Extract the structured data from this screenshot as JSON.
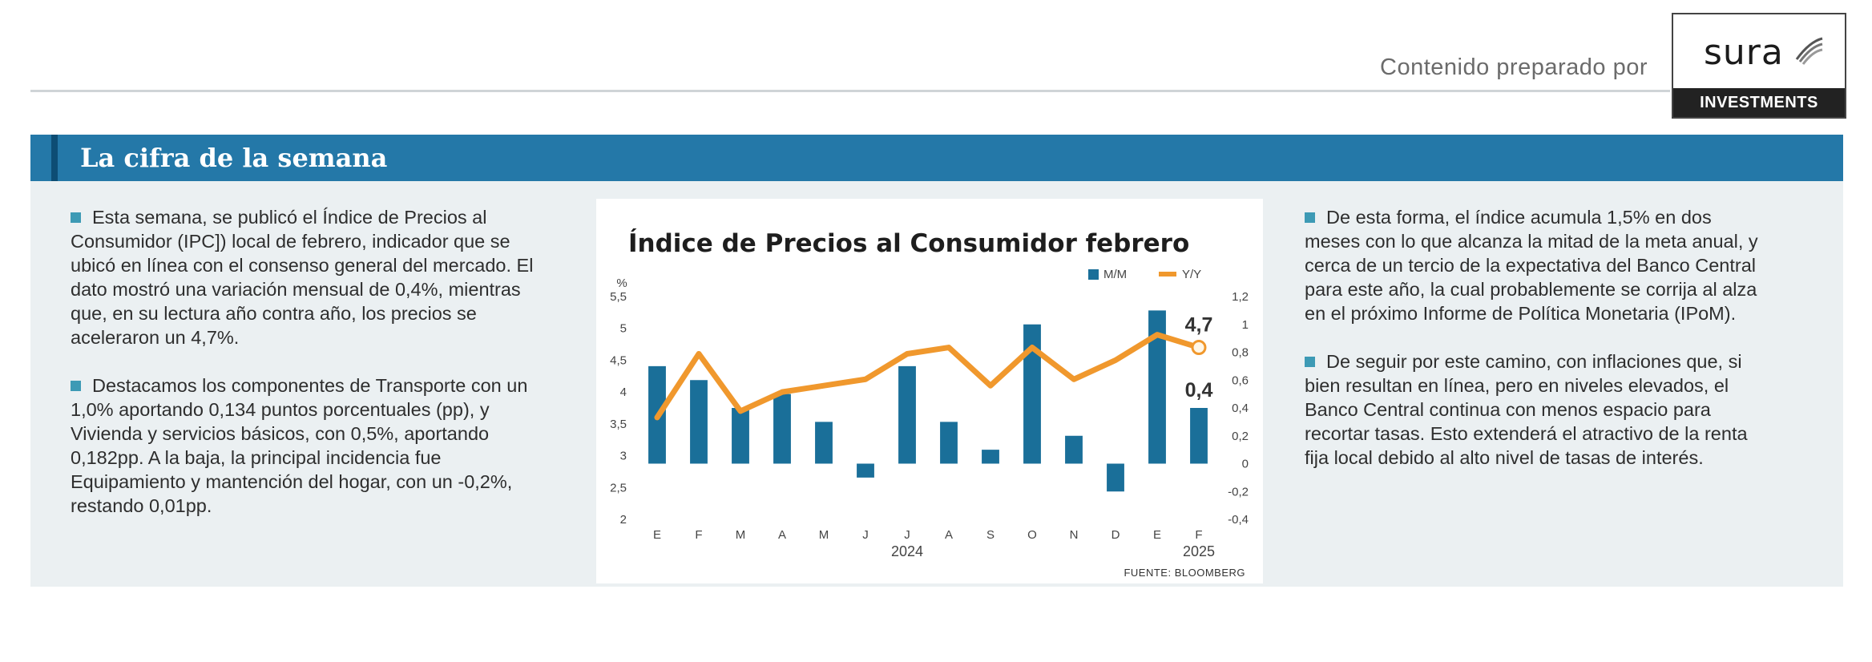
{
  "header": {
    "prepared_by": "Contenido preparado por",
    "logo_word": "sura",
    "logo_tagline": "INVESTMENTS"
  },
  "banner": {
    "title": "La cifra de la semana"
  },
  "left_text": [
    "Esta semana, se publicó el Índice de Precios al Consumidor (IPC]) local de febrero, indicador que se ubicó en línea con el consenso general del mercado. El dato mostró una variación mensual de 0,4%, mientras que, en su lectura año contra año, los precios se aceleraron un 4,7%.",
    "Destacamos los componentes de Transporte con un 1,0% aportando 0,134 puntos porcentuales (pp), y Vivienda y servicios básicos, con 0,5%, aportando 0,182pp. A la baja, la principal incidencia fue Equipamiento y mantención del hogar, con un -0,2%, restando 0,01pp."
  ],
  "right_text": [
    "De esta forma, el índice acumula 1,5% en dos meses con lo que alcanza la mitad de la meta anual, y cerca de un tercio de la expectativa del Banco Central para este año, la cual probablemente se corrija al alza en el próximo Informe de Política Monetaria (IPoM).",
    "De seguir por este camino, con inflaciones que, si bien resultan en línea, pero en niveles elevados, el Banco Central continua con menos espacio para recortar tasas. Esto extenderá el atractivo de la renta fija local debido al alto nivel de tasas de interés."
  ],
  "colors": {
    "bar": "#1a6f99",
    "line": "#f0982d",
    "banner": "#2478a8"
  },
  "chart_data": {
    "type": "bar",
    "title": "Índice de Precios al Consumidor febrero",
    "left_axis_unit": "%",
    "categories": [
      "E",
      "F",
      "M",
      "A",
      "M",
      "J",
      "J",
      "A",
      "S",
      "O",
      "N",
      "D",
      "E",
      "F"
    ],
    "year_labels": [
      {
        "label": "2024",
        "category_index": 6
      },
      {
        "label": "2025",
        "category_index": 13
      }
    ],
    "series": [
      {
        "name": "M/M",
        "type": "bar",
        "axis": "right",
        "values": [
          0.7,
          0.6,
          0.4,
          0.5,
          0.3,
          -0.1,
          0.7,
          0.3,
          0.1,
          1.0,
          0.2,
          -0.2,
          1.1,
          0.4
        ]
      },
      {
        "name": "Y/Y",
        "type": "line",
        "axis": "left",
        "values": [
          3.6,
          4.6,
          3.7,
          4.0,
          4.1,
          4.2,
          4.6,
          4.7,
          4.1,
          4.7,
          4.2,
          4.5,
          4.9,
          4.7
        ]
      }
    ],
    "y_left": {
      "min": 2,
      "max": 5.5,
      "ticks": [
        "2",
        "2,5",
        "3",
        "3,5",
        "4",
        "4,5",
        "5",
        "5,5"
      ]
    },
    "y_right": {
      "min": -0.4,
      "max": 1.2,
      "ticks": [
        "-0,4",
        "-0,2",
        "0",
        "0,2",
        "0,4",
        "0,6",
        "0,8",
        "1",
        "1,2"
      ]
    },
    "annotations": [
      {
        "text": "4,7",
        "series": "Y/Y",
        "category_index": 13
      },
      {
        "text": "0,4",
        "series": "M/M",
        "category_index": 13
      }
    ],
    "legend_position": "top-right",
    "grid": false,
    "source": "FUENTE: BLOOMBERG"
  }
}
